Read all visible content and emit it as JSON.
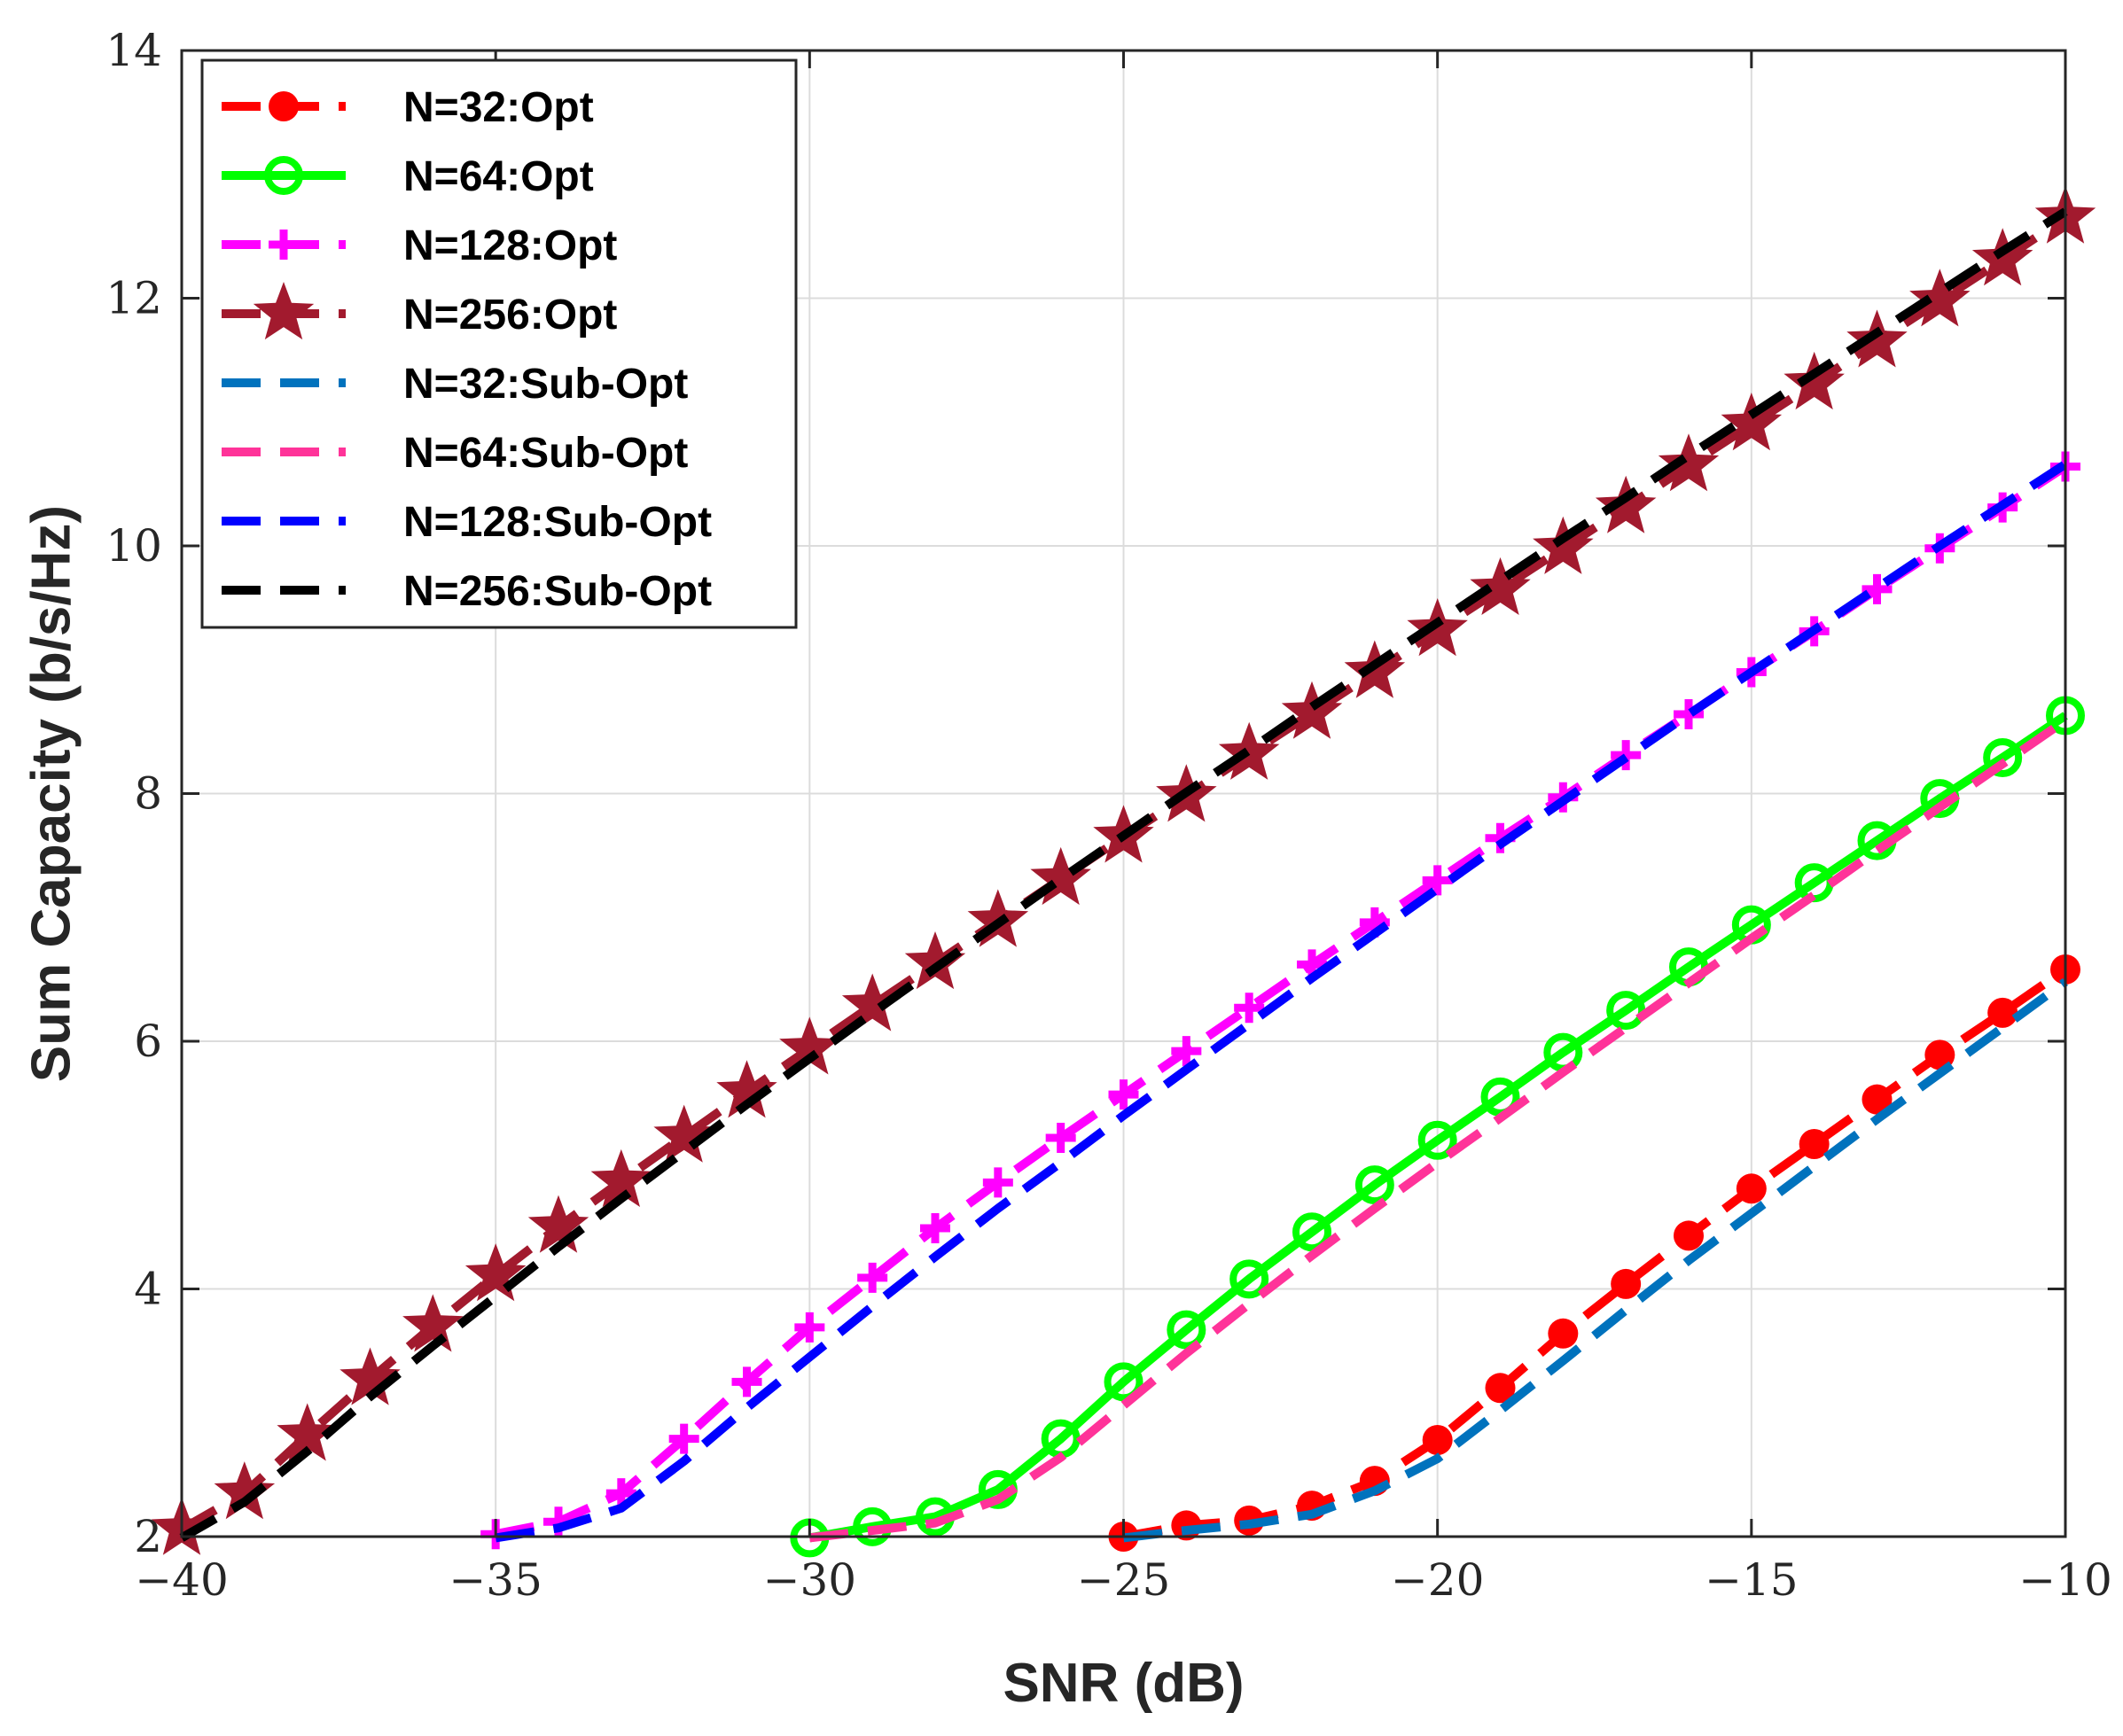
{
  "chart_data": {
    "type": "line",
    "title": "",
    "xlabel": "SNR (dB)",
    "ylabel": "Sum Capacity (b/s/Hz)",
    "xlim": [
      -40,
      -10
    ],
    "ylim": [
      2,
      14
    ],
    "xticks": [
      -40,
      -35,
      -30,
      -25,
      -20,
      -15,
      -10
    ],
    "xtick_labels": [
      "−40",
      "−35",
      "−30",
      "−25",
      "−20",
      "−15",
      "−10"
    ],
    "yticks": [
      2,
      4,
      6,
      8,
      10,
      12,
      14
    ],
    "ytick_labels": [
      "2",
      "4",
      "6",
      "8",
      "10",
      "12",
      "14"
    ],
    "grid": true,
    "legend_position": "top-left",
    "series": [
      {
        "name": "N=32:Opt",
        "color": "#ff0000",
        "marker": "filled-circle",
        "line": "dashed",
        "x": [
          -25,
          -24,
          -23,
          -22,
          -21,
          -20,
          -19,
          -18,
          -17,
          -16,
          -15,
          -14,
          -13,
          -12,
          -11,
          -10
        ],
        "y": [
          2.0,
          2.09,
          2.13,
          2.25,
          2.45,
          2.78,
          3.2,
          3.64,
          4.04,
          4.43,
          4.81,
          5.17,
          5.53,
          5.89,
          6.23,
          6.58
        ]
      },
      {
        "name": "N=64:Opt",
        "color": "#00ff00",
        "marker": "open-circle",
        "line": "solid",
        "x": [
          -30,
          -29,
          -28,
          -27,
          -26,
          -25,
          -24,
          -23,
          -22,
          -21,
          -20,
          -19,
          -18,
          -17,
          -16,
          -15,
          -14,
          -13,
          -12,
          -11,
          -10
        ],
        "y": [
          1.99,
          2.08,
          2.16,
          2.38,
          2.79,
          3.25,
          3.67,
          4.08,
          4.46,
          4.84,
          5.2,
          5.55,
          5.91,
          6.25,
          6.6,
          6.94,
          7.28,
          7.62,
          7.96,
          8.29,
          8.63
        ]
      },
      {
        "name": "N=128:Opt",
        "color": "#ff00ff",
        "marker": "plus",
        "line": "dashed",
        "x": [
          -35,
          -34,
          -33,
          -32,
          -31,
          -30,
          -29,
          -28,
          -27,
          -26,
          -25,
          -24,
          -23,
          -22,
          -21,
          -20,
          -19,
          -18,
          -17,
          -16,
          -15,
          -14,
          -13,
          -12,
          -11,
          -10
        ],
        "y": [
          2.02,
          2.12,
          2.35,
          2.79,
          3.25,
          3.69,
          4.09,
          4.49,
          4.86,
          5.22,
          5.57,
          5.92,
          6.27,
          6.62,
          6.96,
          7.3,
          7.64,
          7.97,
          8.31,
          8.64,
          8.98,
          9.31,
          9.65,
          9.98,
          10.31,
          10.64
        ]
      },
      {
        "name": "N=256:Opt",
        "color": "#a21a2e",
        "marker": "star",
        "line": "dashed",
        "x": [
          -40,
          -39,
          -38,
          -37,
          -36,
          -35,
          -34,
          -33,
          -32,
          -31,
          -30,
          -29,
          -28,
          -27,
          -26,
          -25,
          -24,
          -23,
          -22,
          -21,
          -20,
          -19,
          -18,
          -17,
          -16,
          -15,
          -14,
          -13,
          -12,
          -11,
          -10
        ],
        "y": [
          2.06,
          2.35,
          2.82,
          3.27,
          3.7,
          4.11,
          4.5,
          4.87,
          5.23,
          5.59,
          5.94,
          6.29,
          6.63,
          6.97,
          7.31,
          7.65,
          7.98,
          8.32,
          8.65,
          8.98,
          9.32,
          9.65,
          9.98,
          10.31,
          10.65,
          10.98,
          11.31,
          11.65,
          11.98,
          12.31,
          12.65
        ]
      },
      {
        "name": "N=32:Sub-Opt",
        "color": "#0072bd",
        "marker": "none",
        "line": "dashed",
        "x": [
          -25,
          -24,
          -23,
          -22,
          -21,
          -20,
          -19,
          -18,
          -17,
          -16,
          -15,
          -14,
          -13,
          -12,
          -11,
          -10
        ],
        "y": [
          1.99,
          2.05,
          2.1,
          2.18,
          2.37,
          2.63,
          3.02,
          3.42,
          3.83,
          4.23,
          4.61,
          4.99,
          5.37,
          5.74,
          6.11,
          6.48
        ]
      },
      {
        "name": "N=64:Sub-Opt",
        "color": "#ff3399",
        "marker": "none",
        "line": "dashed",
        "x": [
          -30,
          -29,
          -28,
          -27,
          -26,
          -25,
          -24,
          -23,
          -22,
          -21,
          -20,
          -19,
          -18,
          -17,
          -16,
          -15,
          -14,
          -13,
          -12,
          -11,
          -10
        ],
        "y": [
          1.99,
          2.05,
          2.11,
          2.3,
          2.64,
          3.06,
          3.48,
          3.88,
          4.27,
          4.65,
          5.02,
          5.38,
          5.75,
          6.11,
          6.47,
          6.83,
          7.18,
          7.54,
          7.89,
          8.24,
          8.59
        ]
      },
      {
        "name": "N=128:Sub-Opt",
        "color": "#0000ff",
        "marker": "none",
        "line": "dashed",
        "x": [
          -35,
          -34,
          -33,
          -32,
          -31,
          -30,
          -29,
          -28,
          -27,
          -26,
          -25,
          -24,
          -23,
          -22,
          -21,
          -20,
          -19,
          -18,
          -17,
          -16,
          -15,
          -14,
          -13,
          -12,
          -11,
          -10
        ],
        "y": [
          1.99,
          2.07,
          2.23,
          2.61,
          3.04,
          3.45,
          3.86,
          4.26,
          4.65,
          5.02,
          5.4,
          5.77,
          6.14,
          6.51,
          6.87,
          7.23,
          7.59,
          7.94,
          8.29,
          8.64,
          8.98,
          9.32,
          9.66,
          10.0,
          10.33,
          10.66
        ]
      },
      {
        "name": "N=256:Sub-Opt",
        "color": "#000000",
        "marker": "none",
        "line": "dashed",
        "x": [
          -40,
          -39,
          -38,
          -37,
          -36,
          -35,
          -34,
          -33,
          -32,
          -31,
          -30,
          -29,
          -28,
          -27,
          -26,
          -25,
          -24,
          -23,
          -22,
          -21,
          -20,
          -19,
          -18,
          -17,
          -16,
          -15,
          -14,
          -13,
          -12,
          -11,
          -10
        ],
        "y": [
          1.99,
          2.28,
          2.69,
          3.13,
          3.54,
          3.94,
          4.34,
          4.73,
          5.11,
          5.49,
          5.86,
          6.23,
          6.59,
          6.95,
          7.31,
          7.66,
          8.01,
          8.35,
          8.7,
          9.04,
          9.38,
          9.72,
          10.06,
          10.39,
          10.73,
          11.06,
          11.39,
          11.72,
          12.05,
          12.38,
          12.7
        ]
      }
    ]
  }
}
